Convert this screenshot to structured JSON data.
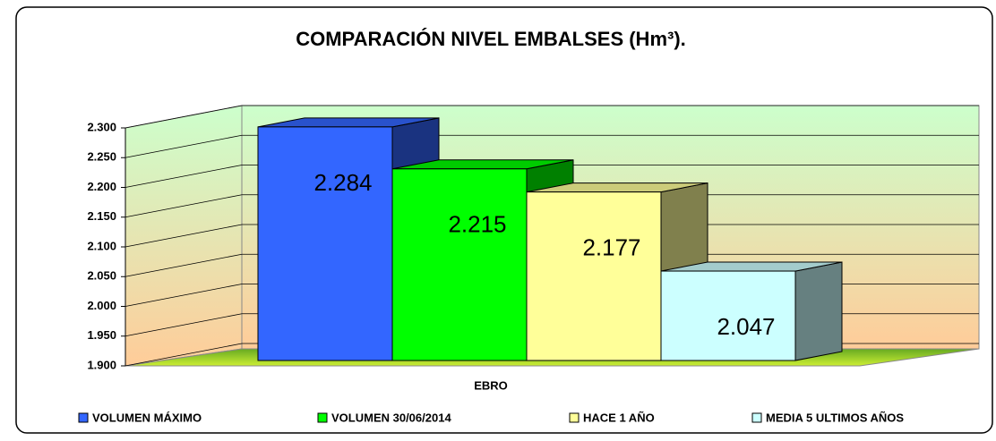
{
  "chart_data": {
    "type": "bar3d",
    "title": "COMPARACIÓN NIVEL EMBALSES (Hm³).",
    "categories": [
      "EBRO"
    ],
    "series": [
      {
        "name": "VOLUMEN MÁXIMO",
        "color": "#3366ff",
        "values": [
          2284
        ],
        "value_labels": [
          "2.284"
        ]
      },
      {
        "name": "VOLUMEN 30/06/2014",
        "color": "#00ff00",
        "values": [
          2215
        ],
        "value_labels": [
          "2.215"
        ]
      },
      {
        "name": "HACE 1 AÑO",
        "color": "#ffff99",
        "values": [
          2177
        ],
        "value_labels": [
          "2.177"
        ]
      },
      {
        "name": "MEDIA 5 ULTIMOS AÑOS",
        "color": "#ccffff",
        "values": [
          2047
        ],
        "value_labels": [
          "2.047"
        ]
      }
    ],
    "ylim": [
      1900,
      2300
    ],
    "yticks": [
      {
        "value": 1900,
        "label": "1.900"
      },
      {
        "value": 1950,
        "label": "1.950"
      },
      {
        "value": 2000,
        "label": "2.000"
      },
      {
        "value": 2050,
        "label": "2.050"
      },
      {
        "value": 2100,
        "label": "2.100"
      },
      {
        "value": 2150,
        "label": "2.150"
      },
      {
        "value": 2200,
        "label": "2.200"
      },
      {
        "value": 2250,
        "label": "2.250"
      },
      {
        "value": 2300,
        "label": "2.300"
      }
    ],
    "grid": true,
    "legend": "bottom"
  }
}
